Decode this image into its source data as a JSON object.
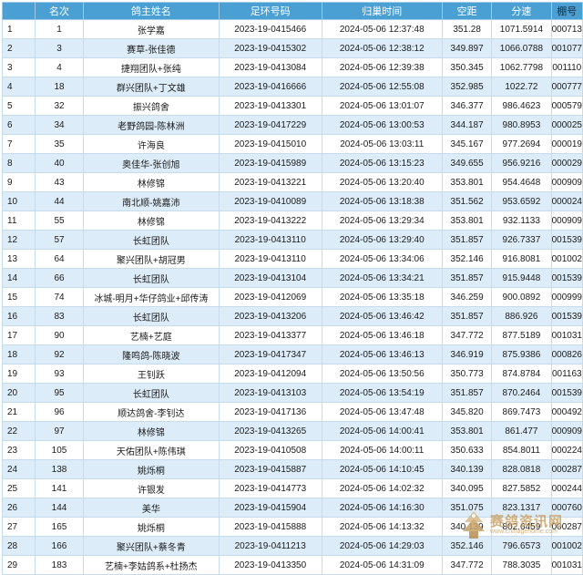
{
  "table": {
    "columns": [
      "",
      "名次",
      "鸽主姓名",
      "足环号码",
      "归巢时间",
      "空距",
      "分速",
      "棚号"
    ],
    "rows": [
      [
        "1",
        "1",
        "张学嘉",
        "2023-19-0415466",
        "2024-05-06 12:37:48",
        "351.28",
        "1071.5914",
        "000713"
      ],
      [
        "2",
        "3",
        "赛草-张佳德",
        "2023-19-0415302",
        "2024-05-06 12:38:12",
        "349.897",
        "1066.0788",
        "001077"
      ],
      [
        "3",
        "4",
        "捷翔团队+张纯",
        "2023-19-0413084",
        "2024-05-06 12:39:38",
        "350.345",
        "1062.7798",
        "001110"
      ],
      [
        "4",
        "18",
        "群兴团队+丁文雄",
        "2023-19-0416666",
        "2024-05-06 12:55:08",
        "352.985",
        "1022.72",
        "000777"
      ],
      [
        "5",
        "32",
        "振兴鸽舍",
        "2023-19-0413301",
        "2024-05-06 13:01:07",
        "346.377",
        "986.4623",
        "000579"
      ],
      [
        "6",
        "34",
        "老野鸽园-陈林洲",
        "2023-19-0417229",
        "2024-05-06 13:00:53",
        "344.187",
        "980.8953",
        "000025"
      ],
      [
        "7",
        "35",
        "许海良",
        "2023-19-0415010",
        "2024-05-06 13:03:11",
        "345.167",
        "977.2694",
        "000019"
      ],
      [
        "8",
        "40",
        "奥佳华-张创旭",
        "2023-19-0415989",
        "2024-05-06 13:15:23",
        "349.655",
        "956.9216",
        "000029"
      ],
      [
        "9",
        "43",
        "林修锦",
        "2023-19-0413221",
        "2024-05-06 13:20:40",
        "353.801",
        "954.4648",
        "000909"
      ],
      [
        "10",
        "44",
        "南北顺-姚嘉沛",
        "2023-19-0410089",
        "2024-05-06 13:18:38",
        "351.562",
        "953.6592",
        "000024"
      ],
      [
        "11",
        "55",
        "林修锦",
        "2023-19-0413222",
        "2024-05-06 13:29:34",
        "353.801",
        "932.1133",
        "000909"
      ],
      [
        "12",
        "57",
        "长虹团队",
        "2023-19-0413110",
        "2024-05-06 13:29:40",
        "351.857",
        "926.7337",
        "001539"
      ],
      [
        "13",
        "64",
        "聚兴团队+胡冠男",
        "2023-19-0413110",
        "2024-05-06 13:34:06",
        "352.146",
        "916.8081",
        "001002"
      ],
      [
        "14",
        "66",
        "长虹团队",
        "2023-19-0413104",
        "2024-05-06 13:34:21",
        "351.857",
        "915.9448",
        "001539"
      ],
      [
        "15",
        "74",
        "冰城-明月+华仔鸽业+邱传涛",
        "2023-19-0412069",
        "2024-05-06 13:35:18",
        "346.259",
        "900.0892",
        "000999"
      ],
      [
        "16",
        "83",
        "长虹团队",
        "2023-19-0413206",
        "2024-05-06 13:46:42",
        "351.857",
        "886.926",
        "001539"
      ],
      [
        "17",
        "90",
        "艺楠+艺庭",
        "2023-19-0413377",
        "2024-05-06 13:46:18",
        "347.772",
        "877.5189",
        "001031"
      ],
      [
        "18",
        "92",
        "隆鸣鸽-陈晓波",
        "2023-19-0417347",
        "2024-05-06 13:46:13",
        "346.919",
        "875.9386",
        "000826"
      ],
      [
        "19",
        "93",
        "王钊跃",
        "2023-19-0412094",
        "2024-05-06 13:50:56",
        "350.773",
        "874.8784",
        "001163"
      ],
      [
        "20",
        "95",
        "长虹团队",
        "2023-19-0413103",
        "2024-05-06 13:54:19",
        "351.857",
        "870.2464",
        "001539"
      ],
      [
        "21",
        "96",
        "顺达鸽舍-李钊达",
        "2023-19-0417136",
        "2024-05-06 13:47:48",
        "345.820",
        "869.7473",
        "000492"
      ],
      [
        "22",
        "97",
        "林修锦",
        "2023-19-0413265",
        "2024-05-06 14:00:41",
        "353.801",
        "861.477",
        "000909"
      ],
      [
        "23",
        "105",
        "天佑团队+陈伟琪",
        "2023-19-0410508",
        "2024-05-06 14:00:11",
        "350.633",
        "854.8011",
        "000224"
      ],
      [
        "24",
        "138",
        "姚烁桐",
        "2023-19-0415887",
        "2024-05-06 14:10:45",
        "340.139",
        "828.0818",
        "000287"
      ],
      [
        "25",
        "141",
        "许银发",
        "2023-19-0414773",
        "2024-05-06 14:02:32",
        "340.095",
        "827.5852",
        "000244"
      ],
      [
        "26",
        "144",
        "美华",
        "2023-19-0415904",
        "2024-05-06 14:16:30",
        "351.075",
        "823.1317",
        "000760"
      ],
      [
        "27",
        "165",
        "姚烁桐",
        "2023-19-0415888",
        "2024-05-06 14:13:32",
        "340.139",
        "802.6459",
        "000287"
      ],
      [
        "28",
        "166",
        "聚兴团队+蔡冬青",
        "2023-19-0411213",
        "2024-05-06 14:29:03",
        "352.146",
        "796.6573",
        "001002"
      ],
      [
        "29",
        "183",
        "艺楠+李姑鸽系+杜扬杰",
        "2023-19-0413350",
        "2024-05-06 14:31:09",
        "347.772",
        "788.3035",
        "001031"
      ]
    ]
  },
  "watermark": {
    "text": "赛鸽资讯网",
    "subtext": "www.chinagehome.com"
  },
  "colors": {
    "header_bg": "#4a9fd3",
    "row_alt_bg": "#dcecf8",
    "watermark": "#c9a36a"
  }
}
